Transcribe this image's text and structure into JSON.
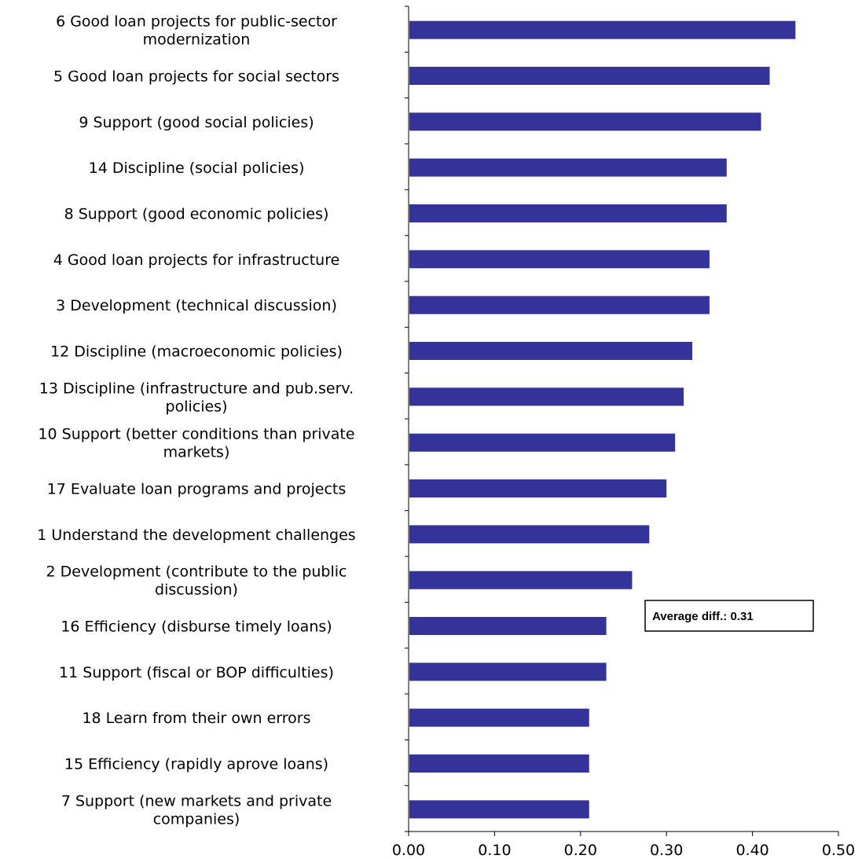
{
  "chart_data": {
    "type": "bar",
    "orientation": "horizontal",
    "categories": [
      [
        "6 Good loan projects for public-sector",
        "modernization"
      ],
      [
        "5 Good loan projects for social sectors"
      ],
      [
        "9 Support (good social policies)"
      ],
      [
        "14 Discipline (social policies)"
      ],
      [
        "8 Support (good economic policies)"
      ],
      [
        "4 Good loan projects for infrastructure"
      ],
      [
        "3 Development (technical discussion)"
      ],
      [
        "12 Discipline (macroeconomic policies)"
      ],
      [
        "13 Discipline (infrastructure and pub.serv.",
        "policies)"
      ],
      [
        "10 Support (better conditions than private",
        "markets)"
      ],
      [
        "17 Evaluate loan programs and projects"
      ],
      [
        "1 Understand the development challenges"
      ],
      [
        "2 Development (contribute to the public",
        "discussion)"
      ],
      [
        "16 Efficiency (disburse timely loans)"
      ],
      [
        "11 Support (fiscal or BOP difficulties)"
      ],
      [
        "18 Learn from their own errors"
      ],
      [
        "15 Efficiency (rapidly aprove loans)"
      ],
      [
        "7 Support (new markets and private",
        "companies)"
      ]
    ],
    "values": [
      0.45,
      0.42,
      0.41,
      0.37,
      0.37,
      0.35,
      0.35,
      0.33,
      0.32,
      0.31,
      0.3,
      0.28,
      0.26,
      0.23,
      0.23,
      0.21,
      0.21,
      0.21
    ],
    "xlim": [
      0,
      0.5
    ],
    "xticks": [
      "0.00",
      "0.10",
      "0.20",
      "0.30",
      "0.40",
      "0.50"
    ],
    "title": "",
    "xlabel": "",
    "ylabel": "",
    "grid": false,
    "annotation": "Average diff.: 0.31",
    "colors": {
      "bar": "#333399",
      "axis": "#000000",
      "annotation_border": "#000000"
    }
  }
}
